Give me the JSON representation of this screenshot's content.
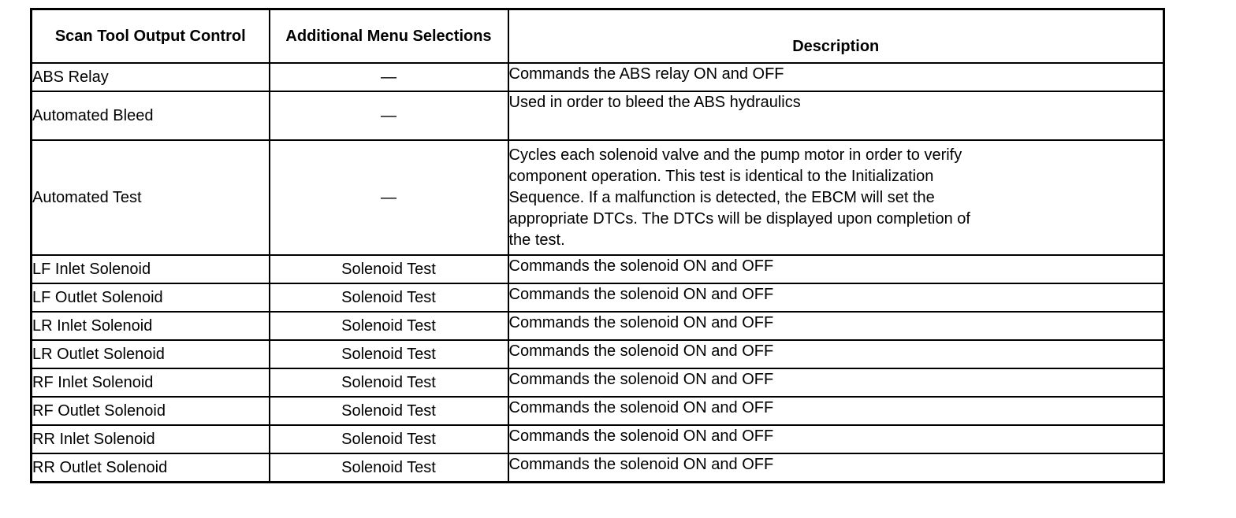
{
  "table": {
    "headers": {
      "control": "Scan Tool Output Control",
      "menu": "Additional Menu Selections",
      "description": "Description"
    },
    "rows": [
      {
        "control": "ABS Relay",
        "menu": "—",
        "description": "Commands the ABS relay ON and OFF"
      },
      {
        "control": "Automated Bleed",
        "menu": "—",
        "description": "Used in order to bleed the ABS hydraulics"
      },
      {
        "control": "Automated Test",
        "menu": "—",
        "description": "Cycles each solenoid valve and the pump motor in order to verify\ncomponent operation. This test is identical to the Initialization\nSequence. If a malfunction is detected, the EBCM will set the\nappropriate DTCs. The DTCs will be displayed upon completion of\nthe test."
      },
      {
        "control": "LF Inlet Solenoid",
        "menu": "Solenoid Test",
        "description": "Commands the solenoid ON and OFF"
      },
      {
        "control": "LF Outlet Solenoid",
        "menu": "Solenoid Test",
        "description": "Commands the solenoid ON and OFF"
      },
      {
        "control": "LR Inlet Solenoid",
        "menu": "Solenoid Test",
        "description": "Commands the solenoid ON and OFF"
      },
      {
        "control": "LR Outlet Solenoid",
        "menu": "Solenoid Test",
        "description": "Commands the solenoid ON and OFF"
      },
      {
        "control": "RF Inlet Solenoid",
        "menu": "Solenoid Test",
        "description": "Commands the solenoid ON and OFF"
      },
      {
        "control": "RF Outlet Solenoid",
        "menu": "Solenoid Test",
        "description": "Commands the solenoid ON and OFF"
      },
      {
        "control": "RR Inlet Solenoid",
        "menu": "Solenoid Test",
        "description": "Commands the solenoid ON and OFF"
      },
      {
        "control": "RR Outlet Solenoid",
        "menu": "Solenoid Test",
        "description": "Commands the solenoid ON and OFF"
      }
    ]
  }
}
